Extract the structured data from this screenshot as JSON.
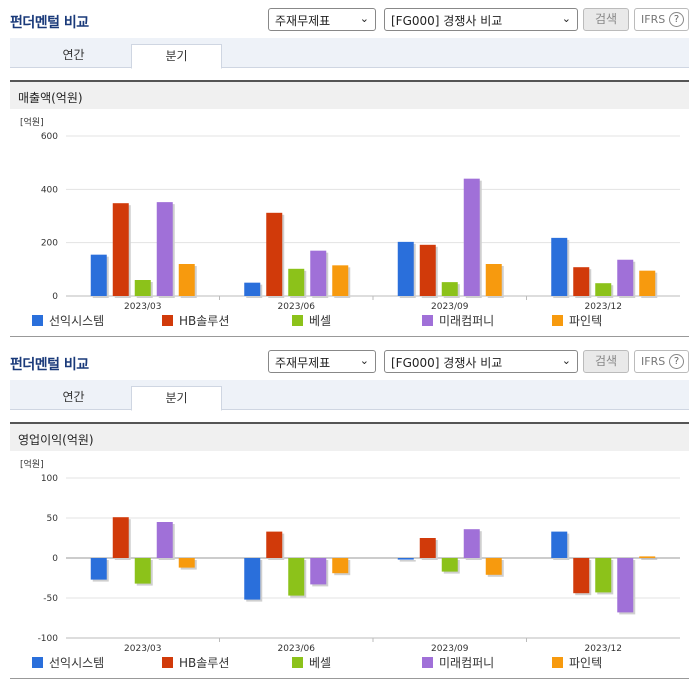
{
  "panels": [
    {
      "title": "펀더멘털 비교",
      "select1": "주재무제표",
      "select2": "[FG000] 경쟁사 비교",
      "search_label": "검색",
      "ifrs_label": "IFRS",
      "help_label": "?",
      "tabs": [
        {
          "label": "연간"
        },
        {
          "label": "분기"
        }
      ],
      "active_tab": 1,
      "section_label": "매출액(억원)"
    },
    {
      "title": "펀더멘털 비교",
      "select1": "주재무제표",
      "select2": "[FG000] 경쟁사 비교",
      "search_label": "검색",
      "ifrs_label": "IFRS",
      "help_label": "?",
      "tabs": [
        {
          "label": "연간"
        },
        {
          "label": "분기"
        }
      ],
      "active_tab": 1,
      "section_label": "영업이익(억원)"
    }
  ],
  "chart_data": [
    {
      "type": "bar",
      "unit_label": "[억원]",
      "categories": [
        "2023/03",
        "2023/06",
        "2023/09",
        "2023/12"
      ],
      "ylim": [
        0,
        600
      ],
      "yticks": [
        0,
        200,
        400,
        600
      ],
      "grid": true,
      "legend_position": "bottom",
      "series": [
        {
          "name": "선익시스템",
          "color": "#2a6fdb",
          "values": [
            155,
            50,
            203,
            218
          ]
        },
        {
          "name": "HB솔루션",
          "color": "#d13a0a",
          "values": [
            348,
            312,
            192,
            108
          ]
        },
        {
          "name": "베셀",
          "color": "#8cc21a",
          "values": [
            60,
            102,
            52,
            48
          ]
        },
        {
          "name": "미래컴퍼니",
          "color": "#a070d8",
          "values": [
            352,
            170,
            440,
            136
          ]
        },
        {
          "name": "파인텍",
          "color": "#f79a0e",
          "values": [
            120,
            115,
            120,
            95
          ]
        }
      ]
    },
    {
      "type": "bar",
      "unit_label": "[억원]",
      "categories": [
        "2023/03",
        "2023/06",
        "2023/09",
        "2023/12"
      ],
      "ylim": [
        -100,
        100
      ],
      "yticks": [
        -100,
        -50,
        0,
        50,
        100
      ],
      "grid": true,
      "legend_position": "bottom",
      "series": [
        {
          "name": "선익시스템",
          "color": "#2a6fdb",
          "values": [
            -27,
            -52,
            -2,
            33
          ]
        },
        {
          "name": "HB솔루션",
          "color": "#d13a0a",
          "values": [
            51,
            33,
            25,
            -44
          ]
        },
        {
          "name": "베셀",
          "color": "#8cc21a",
          "values": [
            -32,
            -47,
            -17,
            -43
          ]
        },
        {
          "name": "미래컴퍼니",
          "color": "#a070d8",
          "values": [
            45,
            -33,
            36,
            -68
          ]
        },
        {
          "name": "파인텍",
          "color": "#f79a0e",
          "values": [
            -12,
            -19,
            -21,
            2
          ]
        }
      ]
    }
  ]
}
